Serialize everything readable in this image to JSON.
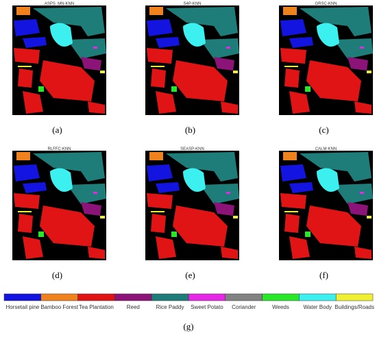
{
  "panels": [
    {
      "title": "ASPS_MN-KNN",
      "caption": "(a)"
    },
    {
      "title": "S4P-KNN",
      "caption": "(b)"
    },
    {
      "title": "GRSC-KNN",
      "caption": "(c)"
    },
    {
      "title": "RLFFC-KNN",
      "caption": "(d)"
    },
    {
      "title": "SEASP-KNN",
      "caption": "(e)"
    },
    {
      "title": "CALM-KNN",
      "caption": "(f)"
    }
  ],
  "legend": {
    "caption": "(g)",
    "classes": [
      {
        "name": "Horsetail pine",
        "color": "#1414e0"
      },
      {
        "name": "Bamboo Forest",
        "color": "#f0821e"
      },
      {
        "name": "Tea Plantation",
        "color": "#e01414"
      },
      {
        "name": "Reed",
        "color": "#8c1478"
      },
      {
        "name": "Rice Paddy",
        "color": "#1e7d78"
      },
      {
        "name": "Sweet Potato",
        "color": "#e628e6"
      },
      {
        "name": "Coriander",
        "color": "#828282"
      },
      {
        "name": "Weeds",
        "color": "#28e628"
      },
      {
        "name": "Water Body",
        "color": "#3cf0f0"
      },
      {
        "name": "Buildings/Roads",
        "color": "#f0f032"
      }
    ]
  }
}
